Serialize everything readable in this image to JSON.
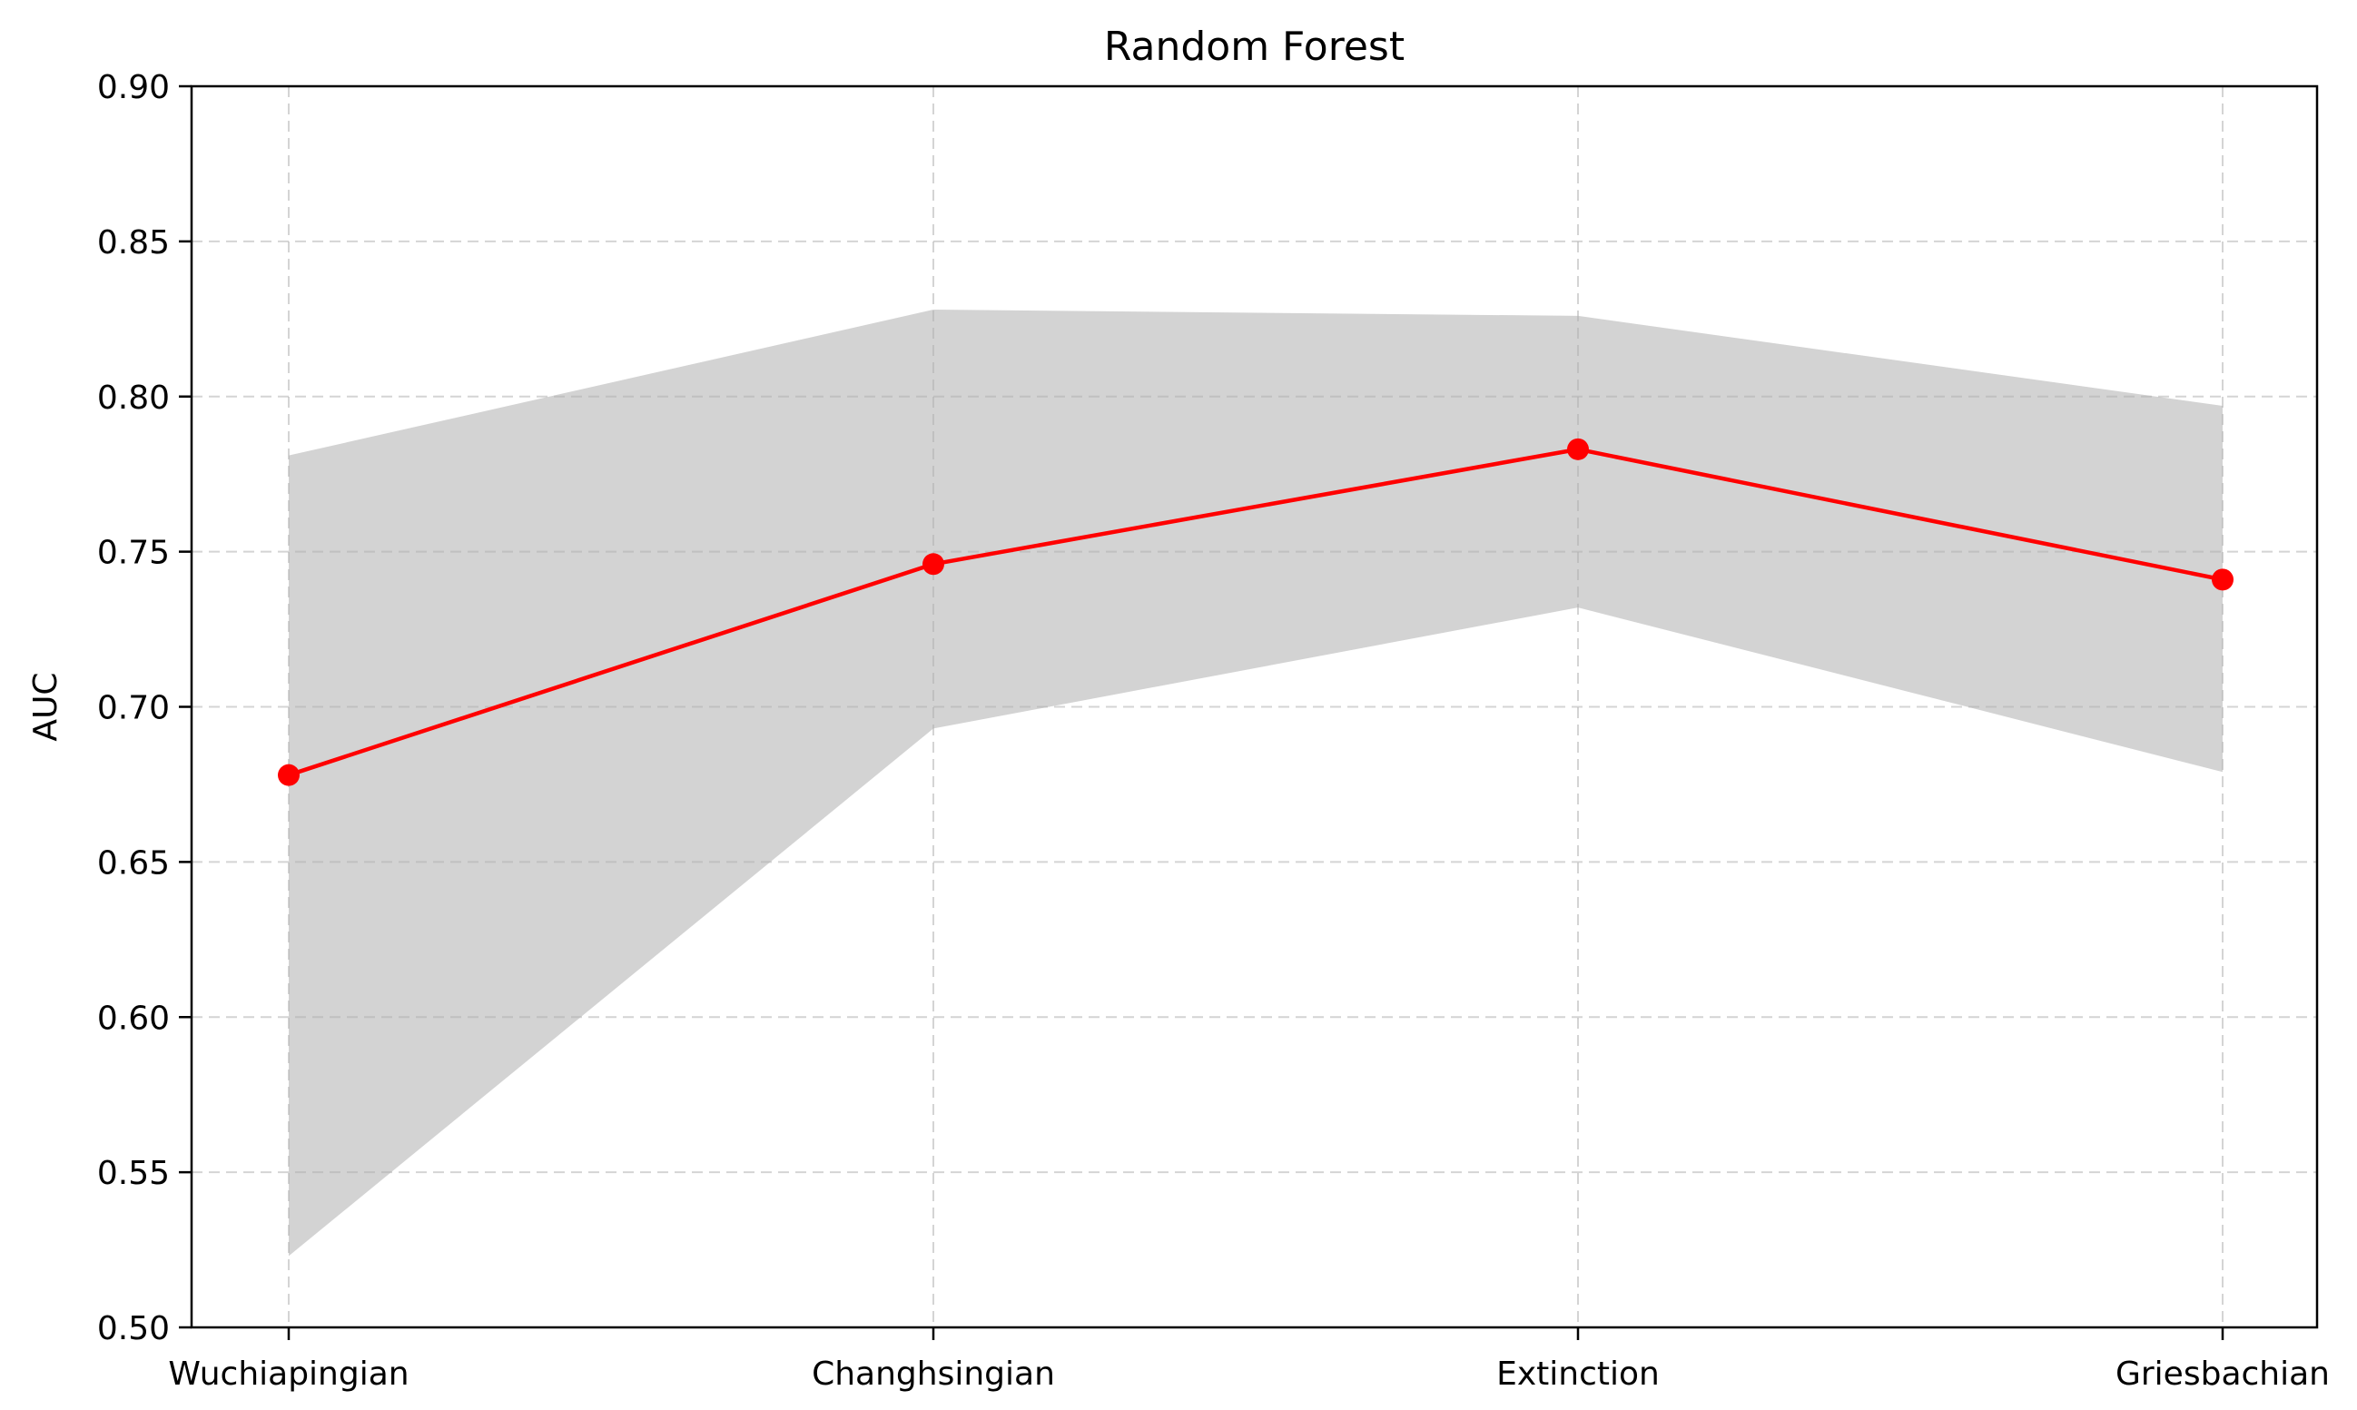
{
  "chart_data": {
    "type": "line",
    "title": "Random Forest",
    "xlabel": "",
    "ylabel": "AUC",
    "categories": [
      "Wuchiapingian",
      "Changhsingian",
      "Extinction",
      "Griesbachian"
    ],
    "series": [
      {
        "values": [
          0.678,
          0.746,
          0.783,
          0.741
        ],
        "color": "#ff0000",
        "marker": "circle"
      }
    ],
    "band": {
      "lower": [
        0.523,
        0.693,
        0.732,
        0.679
      ],
      "upper": [
        0.781,
        0.828,
        0.826,
        0.797
      ],
      "color": "#d3d3d3"
    },
    "ylim": [
      0.5,
      0.9
    ],
    "yticks": [
      "0.50",
      "0.55",
      "0.60",
      "0.65",
      "0.70",
      "0.75",
      "0.80",
      "0.85",
      "0.90"
    ],
    "grid": true
  }
}
